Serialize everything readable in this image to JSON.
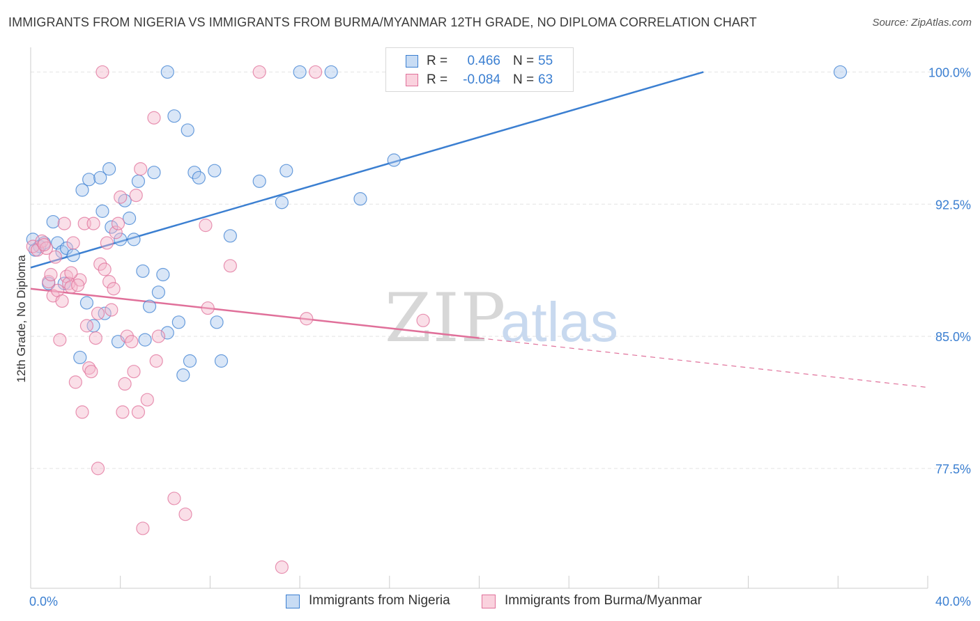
{
  "title": "IMMIGRANTS FROM NIGERIA VS IMMIGRANTS FROM BURMA/MYANMAR 12TH GRADE, NO DIPLOMA CORRELATION CHART",
  "source": "Source: ZipAtlas.com",
  "watermark": {
    "zip": "ZIP",
    "atlas": "atlas"
  },
  "colors": {
    "blue": "#3b7fd1",
    "blue_fill": "#aac8ee",
    "pink": "#e0709a",
    "pink_fill": "#f4b8cc",
    "tick_text": "#3b7fd1",
    "grid": "#e3e3e3"
  },
  "legend": {
    "r_label": "R =",
    "n_label": "N =",
    "rows": [
      {
        "r": "0.466",
        "n": "55",
        "color": "blue"
      },
      {
        "r": "-0.084",
        "n": "63",
        "color": "pink"
      }
    ]
  },
  "bottom_legend": [
    {
      "label": "Immigrants from Nigeria",
      "color": "blue"
    },
    {
      "label": "Immigrants from Burma/Myanmar",
      "color": "pink"
    }
  ],
  "chart_data": {
    "type": "scatter",
    "title": "IMMIGRANTS FROM NIGERIA VS IMMIGRANTS FROM BURMA/MYANMAR 12TH GRADE, NO DIPLOMA CORRELATION CHART",
    "xlabel": "",
    "ylabel": "12th Grade, No Diploma",
    "xlim": [
      0,
      40
    ],
    "ylim": [
      70.7,
      101.4
    ],
    "x_tick_labels": [
      "0.0%",
      "40.0%"
    ],
    "y_ticks": [
      77.5,
      85.0,
      92.5,
      100.0
    ],
    "y_tick_labels": [
      "77.5%",
      "85.0%",
      "92.5%",
      "100.0%"
    ],
    "grid": true,
    "legend_position": "top-center",
    "series": [
      {
        "name": "Immigrants from Nigeria",
        "color": "blue",
        "trend": {
          "x": [
            0,
            30
          ],
          "y": [
            88.9,
            100.0
          ],
          "dashed_extension": false
        },
        "points": [
          [
            0.1,
            90.5
          ],
          [
            0.4,
            90.1
          ],
          [
            0.6,
            90.3
          ],
          [
            0.8,
            88.0
          ],
          [
            1.0,
            91.5
          ],
          [
            1.2,
            90.3
          ],
          [
            1.4,
            89.8
          ],
          [
            1.5,
            88.0
          ],
          [
            1.6,
            90.0
          ],
          [
            1.9,
            89.6
          ],
          [
            2.2,
            83.8
          ],
          [
            2.3,
            93.3
          ],
          [
            2.5,
            86.9
          ],
          [
            2.6,
            93.9
          ],
          [
            2.8,
            85.6
          ],
          [
            3.1,
            94.0
          ],
          [
            3.2,
            92.1
          ],
          [
            3.3,
            86.3
          ],
          [
            3.5,
            94.5
          ],
          [
            3.6,
            91.2
          ],
          [
            3.9,
            84.7
          ],
          [
            4.0,
            90.5
          ],
          [
            4.2,
            92.7
          ],
          [
            4.4,
            91.7
          ],
          [
            4.6,
            90.5
          ],
          [
            4.8,
            93.8
          ],
          [
            5.0,
            88.7
          ],
          [
            5.1,
            84.8
          ],
          [
            5.3,
            86.7
          ],
          [
            5.5,
            94.3
          ],
          [
            5.7,
            87.5
          ],
          [
            5.9,
            88.5
          ],
          [
            6.1,
            85.2
          ],
          [
            6.4,
            97.5
          ],
          [
            6.6,
            85.8
          ],
          [
            6.8,
            82.8
          ],
          [
            7.0,
            96.7
          ],
          [
            7.1,
            83.6
          ],
          [
            7.3,
            94.3
          ],
          [
            7.5,
            94.0
          ],
          [
            8.2,
            94.4
          ],
          [
            8.3,
            85.8
          ],
          [
            8.5,
            83.6
          ],
          [
            8.9,
            90.7
          ],
          [
            10.2,
            93.8
          ],
          [
            11.2,
            92.6
          ],
          [
            11.4,
            94.4
          ],
          [
            14.7,
            92.8
          ],
          [
            16.2,
            95.0
          ],
          [
            6.1,
            100.0
          ],
          [
            12.0,
            100.0
          ],
          [
            13.4,
            100.0
          ],
          [
            16.9,
            100.0
          ],
          [
            36.1,
            100.0
          ],
          [
            0.2,
            89.9
          ]
        ]
      },
      {
        "name": "Immigrants from Burma/Myanmar",
        "color": "pink",
        "trend": {
          "x": [
            0,
            20
          ],
          "y": [
            87.7,
            84.9
          ],
          "dashed_extension_to": [
            40,
            82.1
          ]
        },
        "points": [
          [
            0.1,
            90.1
          ],
          [
            0.3,
            89.9
          ],
          [
            0.5,
            90.4
          ],
          [
            0.7,
            90.0
          ],
          [
            0.8,
            88.1
          ],
          [
            0.9,
            88.5
          ],
          [
            1.0,
            87.3
          ],
          [
            1.2,
            87.6
          ],
          [
            1.3,
            84.8
          ],
          [
            1.4,
            87.0
          ],
          [
            1.5,
            91.4
          ],
          [
            1.6,
            88.4
          ],
          [
            1.7,
            88.0
          ],
          [
            1.8,
            87.8
          ],
          [
            1.9,
            90.3
          ],
          [
            2.0,
            82.4
          ],
          [
            2.2,
            88.2
          ],
          [
            2.3,
            80.7
          ],
          [
            2.4,
            91.4
          ],
          [
            2.5,
            85.6
          ],
          [
            2.6,
            83.2
          ],
          [
            2.7,
            83.0
          ],
          [
            2.8,
            91.4
          ],
          [
            2.9,
            84.9
          ],
          [
            3.0,
            86.3
          ],
          [
            3.1,
            89.1
          ],
          [
            3.3,
            88.8
          ],
          [
            3.5,
            88.1
          ],
          [
            3.6,
            86.5
          ],
          [
            3.7,
            87.7
          ],
          [
            3.8,
            90.9
          ],
          [
            3.9,
            91.4
          ],
          [
            4.0,
            92.9
          ],
          [
            4.1,
            80.7
          ],
          [
            4.2,
            82.3
          ],
          [
            4.3,
            85.0
          ],
          [
            4.5,
            84.7
          ],
          [
            4.6,
            83.0
          ],
          [
            4.7,
            93.0
          ],
          [
            4.8,
            80.7
          ],
          [
            4.9,
            94.5
          ],
          [
            5.0,
            74.1
          ],
          [
            5.2,
            81.4
          ],
          [
            5.5,
            97.4
          ],
          [
            5.6,
            83.6
          ],
          [
            5.7,
            85.0
          ],
          [
            6.4,
            75.8
          ],
          [
            6.9,
            74.9
          ],
          [
            7.8,
            91.3
          ],
          [
            7.9,
            86.6
          ],
          [
            8.9,
            89.0
          ],
          [
            11.2,
            71.9
          ],
          [
            12.3,
            86.0
          ],
          [
            17.5,
            85.9
          ],
          [
            3.0,
            77.5
          ],
          [
            3.2,
            100.0
          ],
          [
            10.2,
            100.0
          ],
          [
            12.7,
            100.0
          ],
          [
            0.6,
            90.2
          ],
          [
            1.1,
            89.5
          ],
          [
            2.1,
            87.9
          ],
          [
            3.4,
            90.3
          ],
          [
            1.8,
            88.6
          ]
        ]
      }
    ]
  }
}
